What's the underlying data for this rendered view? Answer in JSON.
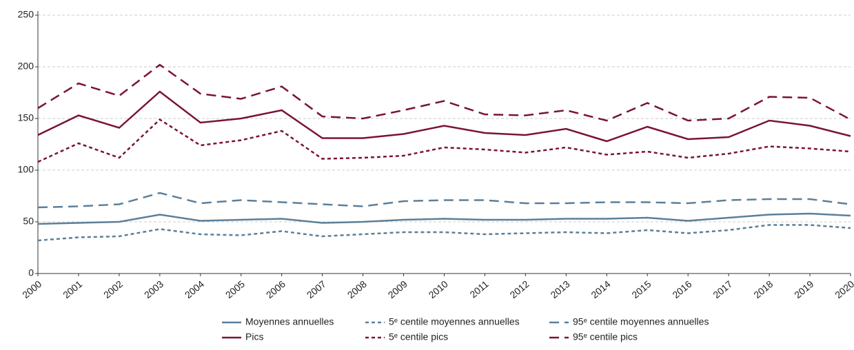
{
  "chart_data": {
    "type": "line",
    "categories": [
      "2000",
      "2001",
      "2002",
      "2003",
      "2004",
      "2005",
      "2006",
      "2007",
      "2008",
      "2009",
      "2010",
      "2011",
      "2012",
      "2013",
      "2014",
      "2015",
      "2016",
      "2017",
      "2018",
      "2019",
      "2020"
    ],
    "ylim": [
      0,
      250
    ],
    "yticks": [
      0,
      50,
      100,
      150,
      200,
      250
    ],
    "grid": true,
    "legend": "bottom",
    "series": [
      {
        "name": "Moyennes annuelles",
        "color": "#5b7f99",
        "dash": "solid",
        "values": [
          48,
          49,
          50,
          57,
          51,
          52,
          53,
          49,
          50,
          52,
          53,
          52,
          52,
          53,
          53,
          54,
          51,
          54,
          57,
          58,
          56
        ]
      },
      {
        "name": "5ᵉ centile moyennes annuelles",
        "color": "#5b7f99",
        "dash": "short",
        "values": [
          32,
          35,
          36,
          43,
          38,
          37,
          41,
          36,
          38,
          40,
          40,
          38,
          39,
          40,
          39,
          42,
          39,
          42,
          47,
          47,
          44
        ]
      },
      {
        "name": "95ᵉ centile moyennes annuelles",
        "color": "#5b7f99",
        "dash": "long",
        "values": [
          64,
          65,
          67,
          78,
          68,
          71,
          69,
          67,
          65,
          70,
          71,
          71,
          68,
          68,
          69,
          69,
          68,
          71,
          72,
          72,
          67
        ]
      },
      {
        "name": "Pics",
        "color": "#7a1238",
        "dash": "solid",
        "values": [
          134,
          153,
          141,
          176,
          146,
          150,
          158,
          131,
          131,
          135,
          143,
          136,
          134,
          140,
          128,
          142,
          130,
          132,
          148,
          143,
          133
        ]
      },
      {
        "name": "5ᵉ centile pics",
        "color": "#7a1238",
        "dash": "short",
        "values": [
          108,
          126,
          112,
          149,
          124,
          129,
          138,
          111,
          112,
          114,
          122,
          120,
          117,
          122,
          115,
          118,
          112,
          116,
          123,
          121,
          118
        ]
      },
      {
        "name": "95ᵉ centile pics",
        "color": "#7a1238",
        "dash": "long",
        "values": [
          160,
          184,
          172,
          202,
          174,
          169,
          181,
          152,
          150,
          158,
          167,
          154,
          153,
          158,
          148,
          165,
          148,
          150,
          171,
          170,
          149
        ]
      }
    ]
  }
}
